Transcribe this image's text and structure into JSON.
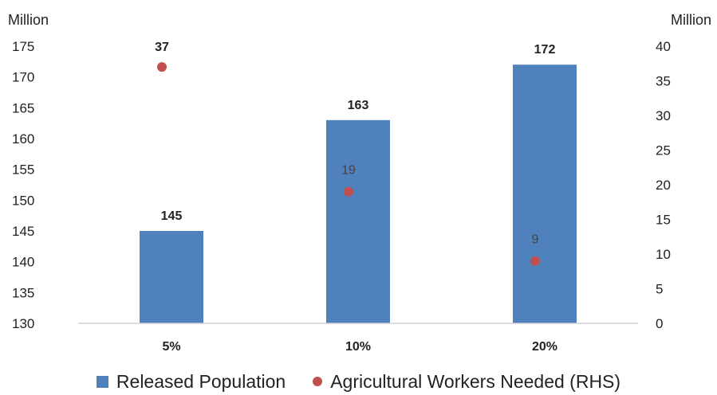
{
  "chart_data": {
    "type": "bar",
    "categories": [
      "5%",
      "10%",
      "20%"
    ],
    "series": [
      {
        "name": "Released Population",
        "type": "bar",
        "axis": "left",
        "values": [
          145,
          163,
          172
        ],
        "labels": [
          "145",
          "163",
          "172"
        ],
        "color": "#4f81bd"
      },
      {
        "name": "Agricultural Workers Needed (RHS)",
        "type": "scatter",
        "axis": "right",
        "values": [
          37,
          19,
          9
        ],
        "labels": [
          "37",
          "19",
          "9"
        ],
        "color": "#c0504d"
      }
    ],
    "left_axis": {
      "unit_label": "Million",
      "ylim": [
        130,
        175
      ],
      "ticks": [
        "130",
        "135",
        "140",
        "145",
        "150",
        "155",
        "160",
        "165",
        "170",
        "175"
      ]
    },
    "right_axis": {
      "unit_label": "Million",
      "ylim": [
        0,
        40
      ],
      "ticks": [
        "0",
        "5",
        "10",
        "15",
        "20",
        "25",
        "30",
        "35",
        "40"
      ]
    },
    "grid": false,
    "legend_position": "bottom"
  },
  "legend": {
    "items": [
      {
        "label": "Released Population",
        "color": "#4f81bd",
        "shape": "square"
      },
      {
        "label": "Agricultural Workers Needed (RHS)",
        "color": "#c0504d",
        "shape": "circle"
      }
    ]
  }
}
